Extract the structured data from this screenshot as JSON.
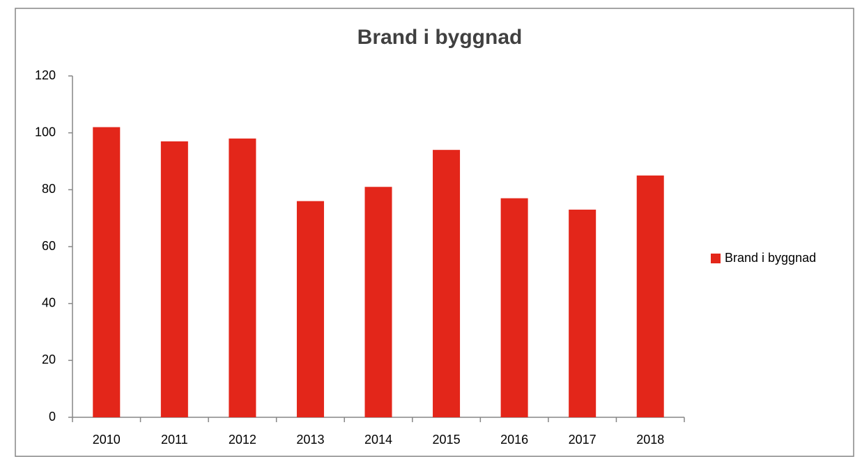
{
  "chart_data": {
    "type": "bar",
    "title": "Brand i byggnad",
    "categories": [
      "2010",
      "2011",
      "2012",
      "2013",
      "2014",
      "2015",
      "2016",
      "2017",
      "2018"
    ],
    "series": [
      {
        "name": "Brand i byggnad",
        "color": "#e3261a",
        "values": [
          102,
          97,
          98,
          76,
          81,
          94,
          77,
          73,
          85
        ]
      }
    ],
    "ylim": [
      0,
      120
    ],
    "yticks": [
      0,
      20,
      40,
      60,
      80,
      100,
      120
    ],
    "grid": false,
    "legend": "right"
  }
}
